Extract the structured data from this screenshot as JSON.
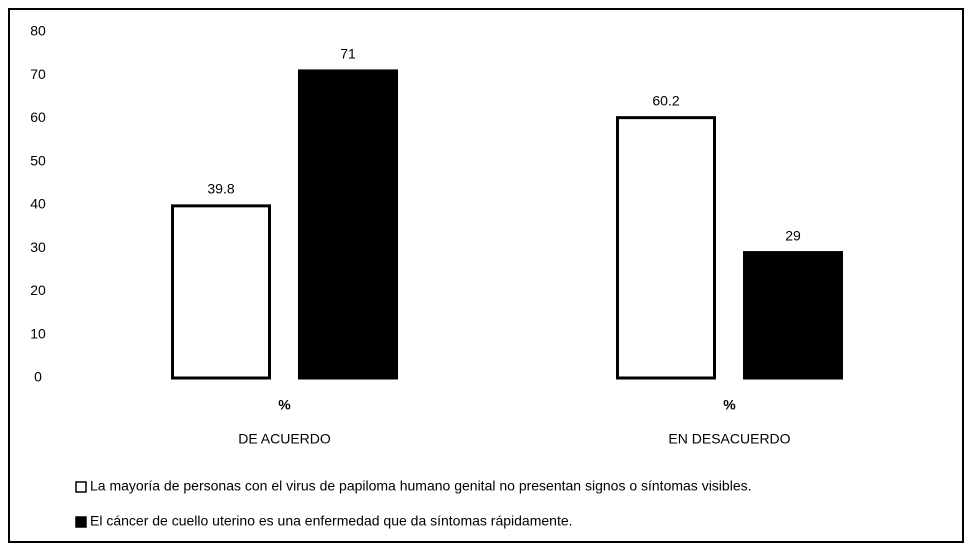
{
  "chart_data": {
    "type": "bar",
    "categories": [
      "DE ACUERDO",
      "EN DESACUERDO"
    ],
    "sublabels": [
      "%",
      "%"
    ],
    "series": [
      {
        "name": "La mayoría de personas con el virus de papiloma humano genital no presentan signos o síntomas visibles.",
        "color": "#ffffff",
        "values": [
          39.8,
          60.2
        ]
      },
      {
        "name": "El cáncer de cuello uterino es una enfermedad que da síntomas rápidamente.",
        "color": "#000000",
        "values": [
          71,
          29
        ]
      }
    ],
    "ylim": [
      0,
      80
    ],
    "yticks": [
      0,
      10,
      20,
      30,
      40,
      50,
      60,
      70,
      80
    ],
    "grid": false,
    "legend": "bottom"
  }
}
